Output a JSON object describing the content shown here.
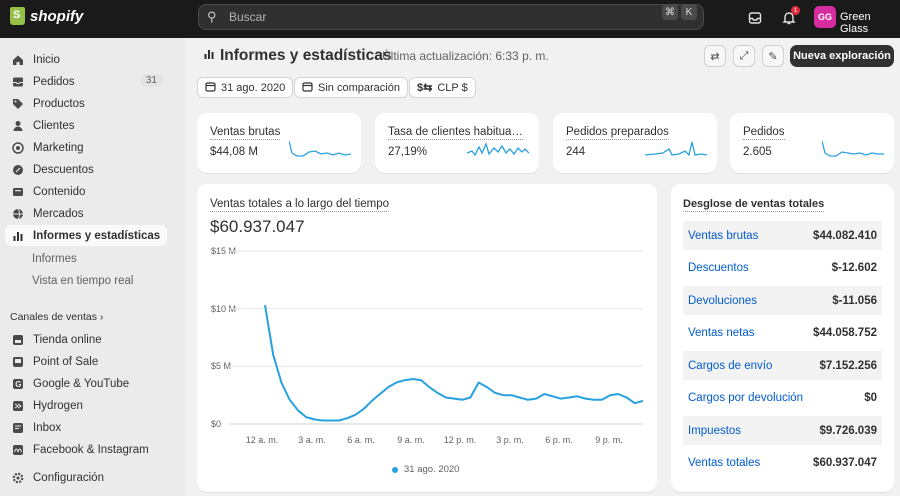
{
  "topbar": {
    "logo_text": "shopify",
    "search_placeholder": "Buscar",
    "shortcut_keys": [
      "⌘",
      "K"
    ],
    "notification_count": "1",
    "avatar_initials": "GG",
    "store_name": "Green Glass"
  },
  "sidebar": {
    "items": [
      {
        "label": "Inicio",
        "icon": "home-icon"
      },
      {
        "label": "Pedidos",
        "icon": "inbox-icon",
        "count": "31"
      },
      {
        "label": "Productos",
        "icon": "tag-icon"
      },
      {
        "label": "Clientes",
        "icon": "person-icon"
      },
      {
        "label": "Marketing",
        "icon": "target-icon"
      },
      {
        "label": "Descuentos",
        "icon": "discount-icon"
      },
      {
        "label": "Contenido",
        "icon": "content-icon"
      },
      {
        "label": "Mercados",
        "icon": "globe-icon"
      },
      {
        "label": "Informes y estadísticas",
        "icon": "bar-chart-icon"
      }
    ],
    "sub_items": [
      "Informes",
      "Vista en tiempo real"
    ],
    "sales_channels_header": "Canales de ventas",
    "channels": [
      {
        "label": "Tienda online",
        "icon": "store-icon"
      },
      {
        "label": "Point of Sale",
        "icon": "pos-icon"
      },
      {
        "label": "Google & YouTube",
        "icon": "google-icon"
      },
      {
        "label": "Hydrogen",
        "icon": "hydrogen-icon"
      },
      {
        "label": "Inbox",
        "icon": "inbox-chat-icon"
      },
      {
        "label": "Facebook & Instagram",
        "icon": "meta-icon"
      }
    ],
    "settings_label": "Configuración"
  },
  "header": {
    "title": "Informes y estadísticas",
    "subtitle": "Última actualización: 6:33 p. m.",
    "primary_button": "Nueva exploración"
  },
  "filters": {
    "date": "31 ago. 2020",
    "comparison": "Sin comparación",
    "currency": "CLP $"
  },
  "metrics": [
    {
      "label": "Ventas brutas",
      "value": "$44,08 M"
    },
    {
      "label": "Tasa de clientes habituales",
      "value": "27,19%"
    },
    {
      "label": "Pedidos preparados",
      "value": "244"
    },
    {
      "label": "Pedidos",
      "value": "2.605"
    }
  ],
  "sales_chart": {
    "title": "Ventas totales a lo largo del tiempo",
    "total": "$60.937.047",
    "legend": "31 ago. 2020"
  },
  "breakdown": {
    "title": "Desglose de ventas totales",
    "rows": [
      {
        "label": "Ventas brutas",
        "value": "$44.082.410"
      },
      {
        "label": "Descuentos",
        "value": "$-12.602"
      },
      {
        "label": "Devoluciones",
        "value": "$-11.056"
      },
      {
        "label": "Ventas netas",
        "value": "$44.058.752"
      },
      {
        "label": "Cargos de envío",
        "value": "$7.152.256"
      },
      {
        "label": "Cargos por devolución",
        "value": "$0"
      },
      {
        "label": "Impuestos",
        "value": "$9.726.039"
      },
      {
        "label": "Ventas totales",
        "value": "$60.937.047"
      }
    ]
  },
  "colors": {
    "accent": "#28a1e0",
    "link": "#005bd3",
    "topbar": "#1a1a1a"
  },
  "chart_data": {
    "type": "line",
    "title": "",
    "xlabel": "",
    "ylabel": "",
    "x_tick_labels": [
      "12 a. m.",
      "3 a. m.",
      "6 a. m.",
      "9 a. m.",
      "12 p. m.",
      "3 p. m.",
      "6 p. m.",
      "9 p. m."
    ],
    "y_tick_labels": [
      "$0",
      "$5 M",
      "$10 M",
      "$15 M"
    ],
    "ylim": [
      0,
      15
    ],
    "y_unit": "M",
    "x_unit": "hour of day",
    "series": [
      {
        "name": "31 ago. 2020",
        "x": [
          1,
          1.5,
          2,
          2.5,
          3,
          3.5,
          4,
          4.5,
          5,
          5.5,
          6,
          6.5,
          7,
          7.5,
          8,
          8.5,
          9,
          9.5,
          10,
          10.5,
          11,
          11.5,
          12,
          12.5,
          13,
          13.5,
          14,
          14.5,
          15,
          15.5,
          16,
          16.5,
          17,
          17.5,
          18,
          18.5,
          19,
          19.5,
          20,
          20.5,
          21,
          21.5,
          22,
          22.5,
          23,
          23.5,
          24
        ],
        "values": [
          10.3,
          6.0,
          3.6,
          2.1,
          1.2,
          0.6,
          0.4,
          0.3,
          0.3,
          0.3,
          0.5,
          0.8,
          1.3,
          2.0,
          2.6,
          3.2,
          3.6,
          3.8,
          3.9,
          3.8,
          3.2,
          2.7,
          2.3,
          2.2,
          2.1,
          2.3,
          3.6,
          3.2,
          2.7,
          2.5,
          2.5,
          2.3,
          2.1,
          2.2,
          2.6,
          2.4,
          2.2,
          2.3,
          2.4,
          2.2,
          2.1,
          2.1,
          2.5,
          2.6,
          2.3,
          1.8,
          2.0
        ]
      }
    ],
    "grid": true
  }
}
